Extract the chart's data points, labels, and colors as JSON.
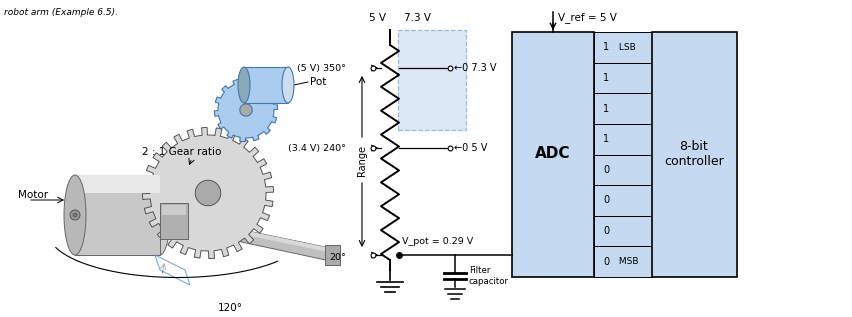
{
  "title_text": "robot arm (Example 6.5).",
  "bg_color": "#ffffff",
  "adc_color": "#c5d9f1",
  "controller_color": "#c5d9f1",
  "highlight_box_color": "#c5d9f1",
  "bits": [
    "1 LSB",
    "1",
    "1",
    "1",
    "0",
    "0",
    "0",
    "0 MSB"
  ],
  "vref_label": "V_ref = 5 V",
  "adc_label": "ADC",
  "controller_label": "8-bit\ncontroller",
  "range_label": "Range",
  "vpot_label": "V_pot = 0.29 V",
  "filter_label": "Filter\ncapacitor",
  "angles": [
    "(5 V) 350°",
    "(3.4 V) 240°",
    "20°"
  ],
  "voltages_right": [
    "←0 7.3 V",
    "←0 5 V"
  ],
  "top_voltages": [
    "5 V",
    "7.3 V"
  ],
  "motor_label": "Motor",
  "gear_label": "2 : 1 Gear ratio",
  "pot_label": "Pot",
  "angle_120": "120°"
}
